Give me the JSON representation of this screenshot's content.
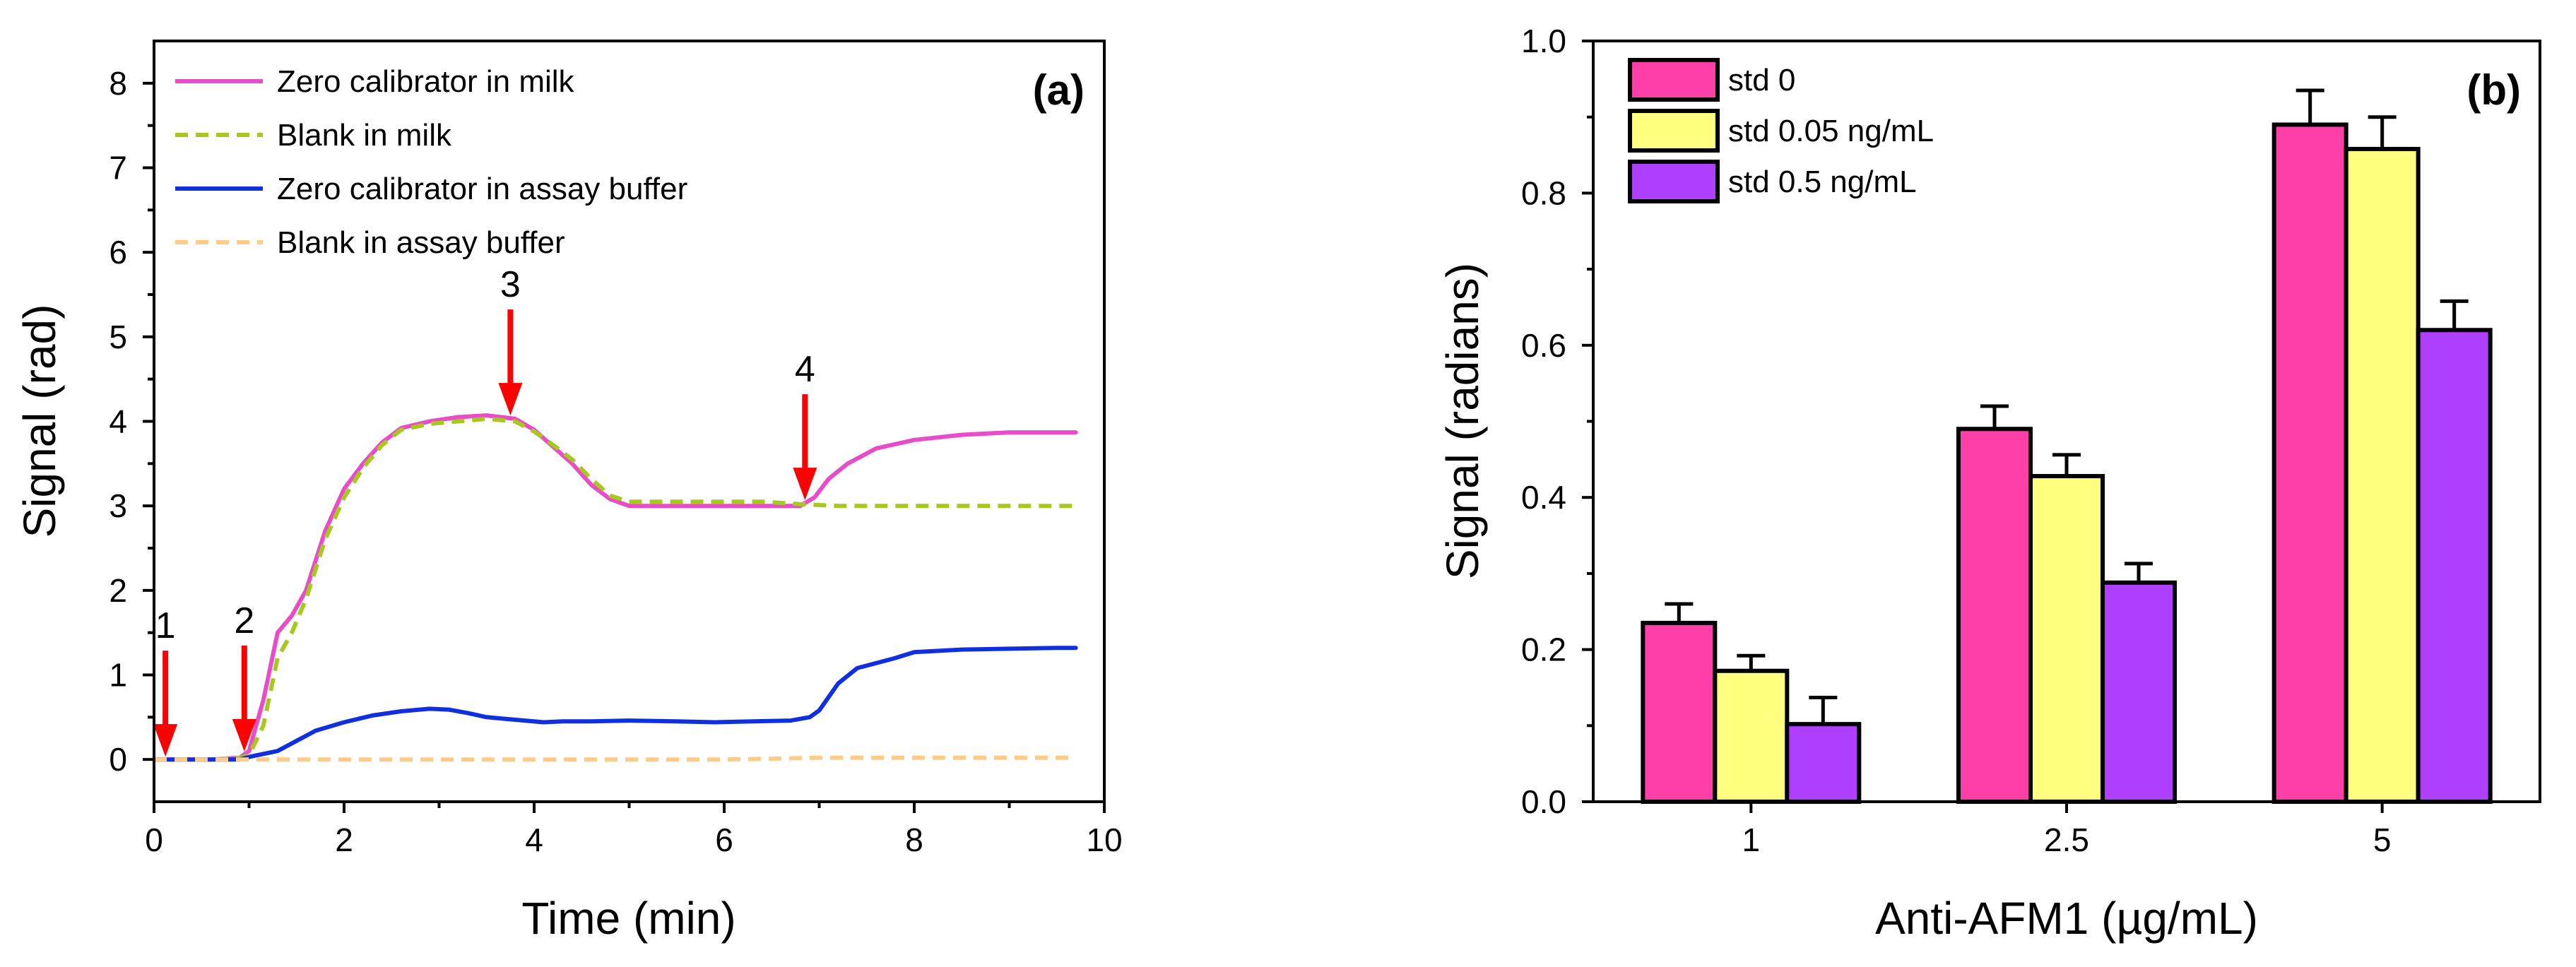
{
  "colors": {
    "magenta": "#E94CC8",
    "olive": "#A7C81E",
    "blue": "#1030E0",
    "orange": "#FFCC88",
    "arrow": "#FF0000",
    "pink": "#FF3FA8",
    "yellow": "#FFFF80",
    "purple": "#B040FF"
  },
  "chart_data": [
    {
      "type": "line",
      "panel_label": "(a)",
      "xlabel": "Time (min)",
      "ylabel": "Signal (rad)",
      "xlim": [
        0,
        10
      ],
      "ylim": [
        -0.5,
        8.5
      ],
      "xticks": [
        0,
        2,
        4,
        6,
        8,
        10
      ],
      "yticks": [
        0,
        1,
        2,
        3,
        4,
        5,
        6,
        7,
        8
      ],
      "series": [
        {
          "name": "Zero calibrator in milk",
          "style": "solid",
          "color_key": "magenta",
          "x": [
            0,
            0.3,
            0.6,
            0.9,
            1.0,
            1.15,
            1.3,
            1.45,
            1.6,
            1.8,
            2.0,
            2.2,
            2.4,
            2.6,
            2.9,
            3.2,
            3.5,
            3.8,
            4.0,
            4.2,
            4.4,
            4.6,
            4.8,
            5.0,
            5.3,
            5.6,
            6.0,
            6.4,
            6.8,
            6.95,
            7.1,
            7.3,
            7.6,
            8.0,
            8.5,
            9.0,
            9.7
          ],
          "y": [
            0,
            0,
            0,
            0.02,
            0.1,
            0.7,
            1.5,
            1.7,
            2.0,
            2.7,
            3.2,
            3.5,
            3.75,
            3.92,
            4.0,
            4.05,
            4.07,
            4.03,
            3.9,
            3.7,
            3.5,
            3.25,
            3.08,
            3.0,
            3.0,
            3.0,
            3.0,
            3.0,
            3.0,
            3.1,
            3.32,
            3.5,
            3.68,
            3.78,
            3.84,
            3.87,
            3.87
          ]
        },
        {
          "name": "Blank in milk",
          "style": "dashed",
          "color_key": "olive",
          "x": [
            0,
            0.3,
            0.6,
            0.9,
            1.0,
            1.15,
            1.3,
            1.45,
            1.6,
            1.8,
            2.0,
            2.2,
            2.4,
            2.6,
            2.9,
            3.2,
            3.5,
            3.8,
            4.0,
            4.2,
            4.4,
            4.6,
            4.8,
            5.0,
            5.3,
            5.6,
            6.0,
            6.4,
            6.8,
            7.2,
            8.0,
            9.0,
            9.7
          ],
          "y": [
            0,
            0,
            0,
            0.02,
            0.05,
            0.4,
            1.2,
            1.5,
            1.9,
            2.6,
            3.1,
            3.45,
            3.72,
            3.9,
            3.97,
            4.0,
            4.03,
            4.0,
            3.88,
            3.72,
            3.55,
            3.32,
            3.12,
            3.05,
            3.05,
            3.05,
            3.05,
            3.05,
            3.02,
            3.0,
            3.0,
            3.0,
            3.0
          ]
        },
        {
          "name": "Zero calibrator in assay buffer",
          "style": "solid",
          "color_key": "blue",
          "x": [
            0,
            0.3,
            0.6,
            0.9,
            1.0,
            1.3,
            1.5,
            1.7,
            2.0,
            2.3,
            2.6,
            2.9,
            3.1,
            3.3,
            3.5,
            3.7,
            3.9,
            4.1,
            4.3,
            4.6,
            5.0,
            5.5,
            5.9,
            6.3,
            6.7,
            6.9,
            7.0,
            7.2,
            7.4,
            7.8,
            8.0,
            8.5,
            9.0,
            9.5,
            9.7
          ],
          "y": [
            0,
            0,
            0,
            0,
            0.03,
            0.1,
            0.22,
            0.34,
            0.44,
            0.52,
            0.57,
            0.6,
            0.59,
            0.55,
            0.5,
            0.48,
            0.46,
            0.44,
            0.45,
            0.45,
            0.46,
            0.45,
            0.44,
            0.45,
            0.46,
            0.5,
            0.58,
            0.9,
            1.08,
            1.2,
            1.27,
            1.3,
            1.31,
            1.32,
            1.32
          ]
        },
        {
          "name": "Blank in assay buffer",
          "style": "dashed",
          "color_key": "orange",
          "x": [
            0,
            1.0,
            2.0,
            3.0,
            4.0,
            5.0,
            6.0,
            7.0,
            8.0,
            9.0,
            9.7
          ],
          "y": [
            0,
            0,
            0,
            0,
            0,
            0,
            0,
            0.02,
            0.02,
            0.02,
            0.02
          ]
        }
      ],
      "arrows": [
        {
          "label": "1",
          "x": 0.12
        },
        {
          "label": "2",
          "x": 0.95
        },
        {
          "label": "3",
          "x": 3.75
        },
        {
          "label": "4",
          "x": 6.85
        }
      ]
    },
    {
      "type": "bar",
      "panel_label": "(b)",
      "xlabel": "Anti-AFM1 (µg/mL)",
      "ylabel": "Signal (radians)",
      "ylim": [
        0,
        1.0
      ],
      "yticks": [
        "0.0",
        "0.2",
        "0.4",
        "0.6",
        "0.8",
        "1.0"
      ],
      "categories": [
        "1",
        "2.5",
        "5"
      ],
      "series": [
        {
          "name": "std 0",
          "color_key": "pink",
          "values": [
            0.235,
            0.49,
            0.89
          ],
          "errors": [
            0.025,
            0.03,
            0.045
          ]
        },
        {
          "name": "std 0.05 ng/mL",
          "color_key": "yellow",
          "values": [
            0.172,
            0.428,
            0.858
          ],
          "errors": [
            0.02,
            0.028,
            0.042
          ]
        },
        {
          "name": "std 0.5 ng/mL",
          "color_key": "purple",
          "values": [
            0.102,
            0.288,
            0.62
          ],
          "errors": [
            0.035,
            0.025,
            0.038
          ]
        }
      ]
    }
  ]
}
